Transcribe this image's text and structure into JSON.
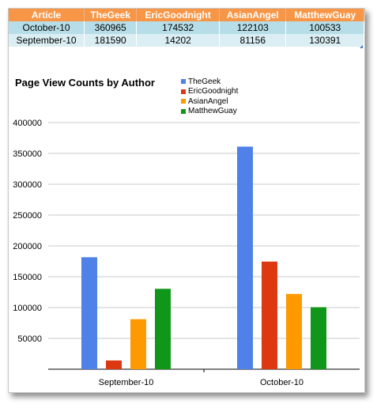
{
  "table": {
    "headers": [
      "Article",
      "TheGeek",
      "EricGoodnight",
      "AsianAngel",
      "MatthewGuay"
    ],
    "rows": [
      [
        "October-10",
        "360965",
        "174532",
        "122103",
        "100533"
      ],
      [
        "September-10",
        "181590",
        "14202",
        "81156",
        "130391"
      ]
    ]
  },
  "chart_data": {
    "type": "bar",
    "title": "Page View Counts by Author",
    "categories": [
      "September-10",
      "October-10"
    ],
    "series": [
      {
        "name": "TheGeek",
        "color": "#4f81e8",
        "values": [
          181590,
          360965
        ]
      },
      {
        "name": "EricGoodnight",
        "color": "#dc3912",
        "values": [
          14202,
          174532
        ]
      },
      {
        "name": "AsianAngel",
        "color": "#ff9900",
        "values": [
          81156,
          122103
        ]
      },
      {
        "name": "MatthewGuay",
        "color": "#109618",
        "values": [
          130391,
          100533
        ]
      }
    ],
    "ylim": [
      0,
      400000
    ],
    "yticks": [
      "50000",
      "100000",
      "150000",
      "200000",
      "250000",
      "300000",
      "350000",
      "400000"
    ],
    "grid": true,
    "legend_position": "top-right"
  },
  "colors": {
    "header_bg": "#f79646",
    "row1_bg": "#b7dee8",
    "row2_bg": "#daeef3"
  }
}
